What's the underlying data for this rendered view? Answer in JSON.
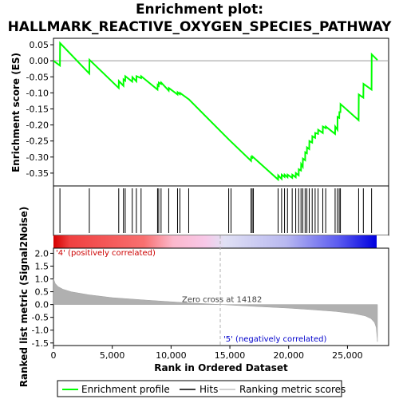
{
  "title_line1": "Enrichment plot:",
  "title_line2": "HALLMARK_REACTIVE_OXYGEN_SPECIES_PATHWAY",
  "chart_data": [
    {
      "type": "line",
      "name": "enrichment-score",
      "ylabel": "Enrichment score (ES)",
      "xlim": [
        0,
        28500
      ],
      "ylim": [
        -0.39,
        0.07
      ],
      "y_ticks": [
        0.05,
        0.0,
        -0.05,
        -0.1,
        -0.15,
        -0.2,
        -0.25,
        -0.3,
        -0.35
      ],
      "y_tick_labels": [
        "0.05",
        "0.00",
        "-0.05",
        "-0.10",
        "-0.15",
        "-0.20",
        "-0.25",
        "-0.30",
        "-0.35"
      ],
      "grid": false,
      "series": [
        {
          "name": "Enrichment profile",
          "color": "#00ff00",
          "x": [
            0,
            550,
            560,
            3050,
            3060,
            5550,
            5560,
            5950,
            5960,
            6100,
            6110,
            6700,
            6710,
            7050,
            7060,
            7450,
            7460,
            8850,
            8860,
            8950,
            8960,
            9150,
            9160,
            9800,
            9810,
            10550,
            10560,
            10750,
            10760,
            11500,
            11510,
            14900,
            16800,
            16810,
            16900,
            16910,
            19100,
            19110,
            19400,
            19410,
            19650,
            19660,
            19900,
            19910,
            20300,
            20310,
            20600,
            20610,
            20850,
            20860,
            21050,
            21060,
            21200,
            21210,
            21400,
            21410,
            21550,
            21560,
            21750,
            21760,
            22000,
            22010,
            22250,
            22260,
            22500,
            22510,
            22900,
            22910,
            23150,
            23160,
            23950,
            23960,
            24150,
            24160,
            24300,
            24310,
            24400,
            24410,
            25950,
            25960,
            26350,
            26360,
            27050,
            27060,
            27550
          ],
          "y": [
            0.0,
            -0.015,
            0.055,
            -0.04,
            0.003,
            -0.085,
            -0.063,
            -0.078,
            -0.058,
            -0.062,
            -0.048,
            -0.065,
            -0.051,
            -0.064,
            -0.048,
            -0.054,
            -0.048,
            -0.09,
            -0.075,
            -0.078,
            -0.068,
            -0.072,
            -0.068,
            -0.093,
            -0.085,
            -0.105,
            -0.098,
            -0.104,
            -0.1,
            -0.12,
            -0.12,
            -0.245,
            -0.312,
            -0.3,
            -0.302,
            -0.298,
            -0.37,
            -0.357,
            -0.368,
            -0.355,
            -0.362,
            -0.355,
            -0.363,
            -0.355,
            -0.365,
            -0.355,
            -0.363,
            -0.35,
            -0.357,
            -0.338,
            -0.342,
            -0.322,
            -0.33,
            -0.305,
            -0.31,
            -0.285,
            -0.288,
            -0.27,
            -0.275,
            -0.25,
            -0.255,
            -0.235,
            -0.24,
            -0.225,
            -0.228,
            -0.215,
            -0.225,
            -0.205,
            -0.21,
            -0.205,
            -0.228,
            -0.205,
            -0.215,
            -0.175,
            -0.178,
            -0.16,
            -0.16,
            -0.135,
            -0.185,
            -0.105,
            -0.115,
            -0.072,
            -0.09,
            0.02,
            0.002
          ]
        }
      ]
    },
    {
      "type": "scatter",
      "name": "hits",
      "x": [
        550,
        3050,
        5550,
        5950,
        6100,
        6700,
        7050,
        7450,
        8850,
        8950,
        9150,
        9800,
        10550,
        10750,
        11500,
        14900,
        15100,
        16800,
        16900,
        17000,
        19100,
        19400,
        19650,
        19900,
        20300,
        20600,
        20850,
        21050,
        21200,
        21400,
        21550,
        21750,
        22000,
        22250,
        22500,
        22900,
        23150,
        23950,
        24150,
        24300,
        24400,
        25950,
        26350,
        27050
      ]
    },
    {
      "type": "area",
      "name": "ranking-metric",
      "ylabel": "Ranked list metric (Signal2Noise)",
      "xlabel": "Rank in Ordered Dataset",
      "xlim": [
        0,
        28500
      ],
      "ylim": [
        -1.6,
        2.2
      ],
      "x_ticks": [
        0,
        5000,
        10000,
        15000,
        20000,
        25000
      ],
      "x_tick_labels": [
        "0",
        "5,000",
        "10,000",
        "15,000",
        "20,000",
        "25,000"
      ],
      "y_ticks": [
        2.0,
        1.5,
        1.0,
        0.5,
        0.0,
        -0.5,
        -1.0,
        -1.5
      ],
      "y_tick_labels": [
        "2.0",
        "1.5",
        "1.0",
        "0.5",
        "0.0",
        "-0.5",
        "-1.0",
        "-1.5"
      ],
      "color": "#b0b0b0",
      "x": [
        0,
        150,
        400,
        800,
        1500,
        3000,
        5000,
        8000,
        11000,
        14182,
        17000,
        20000,
        22000,
        24000,
        25500,
        26500,
        27000,
        27300,
        27450,
        27550
      ],
      "y": [
        1.02,
        0.82,
        0.7,
        0.6,
        0.5,
        0.38,
        0.27,
        0.17,
        0.08,
        0.0,
        -0.07,
        -0.14,
        -0.2,
        -0.27,
        -0.35,
        -0.44,
        -0.55,
        -0.7,
        -0.9,
        -1.45
      ],
      "zero_cross_label": "Zero cross at 14182",
      "zero_cross_x": 14182,
      "positive_label": "'4' (positively correlated)",
      "negative_label": "'5' (negatively correlated)"
    }
  ],
  "legend": {
    "items": [
      {
        "label": "Enrichment profile",
        "color": "#00ff00"
      },
      {
        "label": "Hits",
        "color": "#000000"
      },
      {
        "label": "Ranking metric scores",
        "color": "#c0c0c0"
      }
    ]
  }
}
